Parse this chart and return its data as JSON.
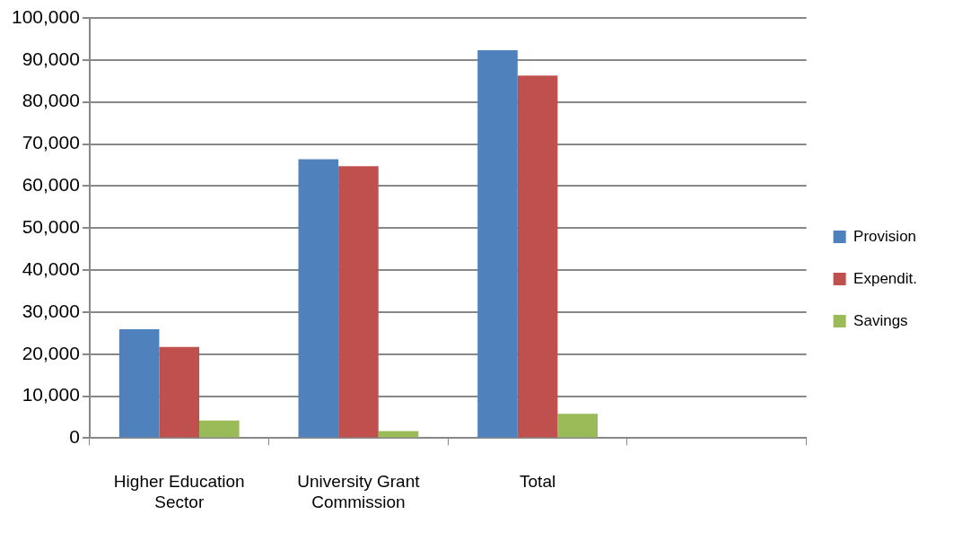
{
  "chart_data": {
    "type": "bar",
    "categories": [
      "Higher Education Sector",
      "University Grant Commission",
      "Total",
      null
    ],
    "series": [
      {
        "name": "Provision",
        "color": "#4f81bd",
        "values": [
          25900,
          66400,
          92300,
          null
        ]
      },
      {
        "name": "Expendit.",
        "color": "#c0504d",
        "values": [
          21700,
          64700,
          86300,
          null
        ]
      },
      {
        "name": "Savings",
        "color": "#9bbb59",
        "values": [
          4200,
          1700,
          5800,
          null
        ]
      }
    ],
    "ylim": [
      0,
      100000
    ],
    "yticks": [
      0,
      {
        "value": 10000,
        "label": "10,000"
      },
      {
        "value": 20000,
        "label": "20,000"
      },
      {
        "value": 30000,
        "label": "30,000"
      },
      {
        "value": 40000,
        "label": "40,000"
      },
      {
        "value": 50000,
        "label": "50,000"
      },
      {
        "value": 60000,
        "label": "60,000"
      },
      {
        "value": 70000,
        "label": "70,000"
      },
      {
        "value": 80000,
        "label": "80,000"
      },
      {
        "value": 90000,
        "label": "90,000"
      },
      {
        "value": 100000,
        "label": "100,000"
      }
    ],
    "grid": "y",
    "legend": "right"
  }
}
